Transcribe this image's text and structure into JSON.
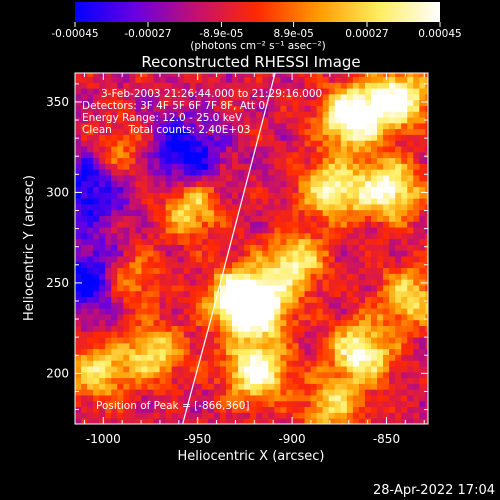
{
  "chart_data": {
    "type": "heatmap",
    "title": "Reconstructed RHESSI Image",
    "xlabel": "Heliocentric X (arcsec)",
    "ylabel": "Heliocentric Y (arcsec)",
    "xlim": [
      -1015,
      -828
    ],
    "ylim": [
      172,
      366
    ],
    "xticks": [
      {
        "value": -1000,
        "label": "-1000"
      },
      {
        "value": -950,
        "label": "-950"
      },
      {
        "value": -900,
        "label": "-900"
      },
      {
        "value": -850,
        "label": "-850"
      }
    ],
    "yticks": [
      {
        "value": 200,
        "label": "200"
      },
      {
        "value": 250,
        "label": "250"
      },
      {
        "value": 300,
        "label": "300"
      },
      {
        "value": 350,
        "label": "350"
      }
    ],
    "colorbar": {
      "range": [
        -0.00045,
        0.00045
      ],
      "ticks": [
        {
          "value": -0.00045,
          "label": "-0.00045"
        },
        {
          "value": -0.00027,
          "label": "-0.00027"
        },
        {
          "value": -8.9e-05,
          "label": "-8.9e-05"
        },
        {
          "value": 8.9e-05,
          "label": "8.9e-05"
        },
        {
          "value": 0.00027,
          "label": "0.00027"
        },
        {
          "value": 0.00045,
          "label": "0.00045"
        }
      ],
      "units_label": "(photons cm⁻² s⁻¹ asec⁻²)",
      "colors": [
        "#0000ff",
        "#6a00e0",
        "#c41070",
        "#ff2a00",
        "#ff9a00",
        "#ffee60",
        "#ffffff"
      ]
    },
    "info_lines": [
      "3-Feb-2003 21:26:44.000 to 21:29:16.000",
      "Detectors: 3F 4F 5F 6F 7F 8F, Att 0",
      "Energy Range: 12.0 - 25.0 keV",
      "Clean     Total counts: 2.40E+03"
    ],
    "peak_label": "Position of Peak = [-866,360]",
    "peak_position": [
      -866,
      360
    ],
    "limb_curve": [
      [
        -958,
        172
      ],
      [
        -943,
        230
      ],
      [
        -928,
        290
      ],
      [
        -909,
        366
      ]
    ],
    "hot_spots": [
      [
        -870,
        340,
        0.75
      ],
      [
        -845,
        350,
        0.65
      ],
      [
        -880,
        300,
        0.55
      ],
      [
        -850,
        300,
        0.6
      ],
      [
        -920,
        235,
        0.7
      ],
      [
        -930,
        240,
        0.6
      ],
      [
        -920,
        200,
        0.65
      ],
      [
        -865,
        210,
        0.6
      ],
      [
        -990,
        250,
        0.5
      ],
      [
        -975,
        210,
        0.45
      ],
      [
        -1005,
        200,
        0.45
      ],
      [
        -955,
        290,
        0.45
      ],
      [
        -900,
        260,
        0.5
      ],
      [
        -840,
        240,
        0.45
      ],
      [
        -880,
        180,
        0.4
      ],
      [
        -990,
        320,
        0.3
      ]
    ],
    "cold_spots": [
      [
        -1005,
        250,
        0.55
      ],
      [
        -960,
        320,
        0.45
      ],
      [
        -1010,
        300,
        0.4
      ]
    ]
  },
  "stamp": "28-Apr-2022 17:04"
}
